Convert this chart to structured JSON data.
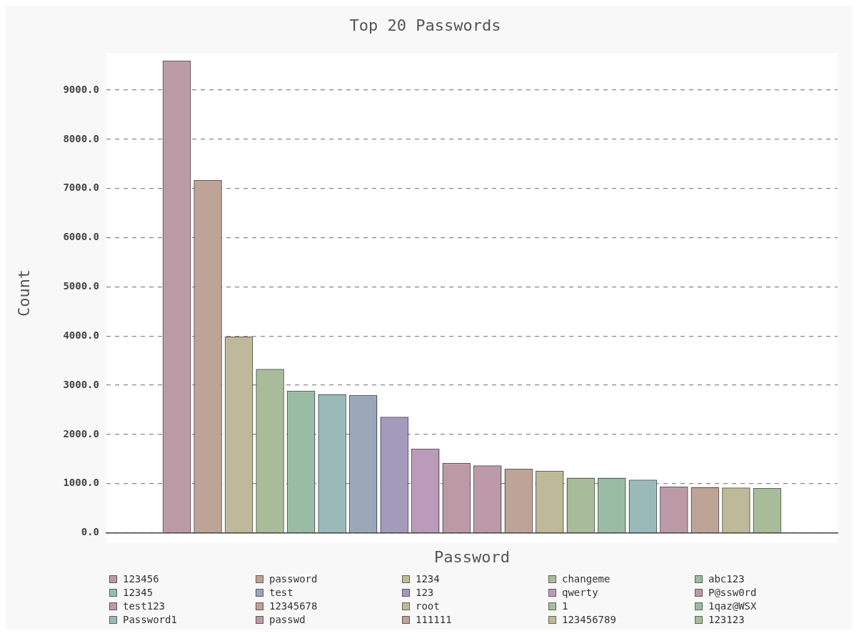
{
  "chart_data": {
    "type": "bar",
    "title": "Top 20 Passwords",
    "xlabel": "Password",
    "ylabel": "Count",
    "categories": [
      null
    ],
    "series": [
      {
        "name": "123456",
        "color": "#bb9aa6",
        "values": [
          9600
        ]
      },
      {
        "name": "password",
        "color": "#bea397",
        "values": [
          7170
        ]
      },
      {
        "name": "1234",
        "color": "#bdb999",
        "values": [
          3990
        ]
      },
      {
        "name": "changeme",
        "color": "#a8bc9a",
        "values": [
          3330
        ]
      },
      {
        "name": "abc123",
        "color": "#9abca4",
        "values": [
          2890
        ]
      },
      {
        "name": "12345",
        "color": "#9abab9",
        "values": [
          2820
        ]
      },
      {
        "name": "test",
        "color": "#9aa8ba",
        "values": [
          2800
        ]
      },
      {
        "name": "123",
        "color": "#a39abc",
        "values": [
          2360
        ]
      },
      {
        "name": "qwerty",
        "color": "#bc9aba",
        "values": [
          1710
        ]
      },
      {
        "name": "P@ssw0rd",
        "color": "#bb9aa6",
        "values": [
          1420
        ]
      },
      {
        "name": "test123",
        "color": "#bc9aa8",
        "values": [
          1370
        ]
      },
      {
        "name": "12345678",
        "color": "#bea397",
        "values": [
          1300
        ]
      },
      {
        "name": "root",
        "color": "#bdb999",
        "values": [
          1260
        ]
      },
      {
        "name": "1",
        "color": "#a8bc9a",
        "values": [
          1120
        ]
      },
      {
        "name": "1qaz@WSX",
        "color": "#9abca4",
        "values": [
          1120
        ]
      },
      {
        "name": "Password1",
        "color": "#9abab9",
        "values": [
          1080
        ]
      },
      {
        "name": "passwd",
        "color": "#bb9aa6",
        "values": [
          940
        ]
      },
      {
        "name": "111111",
        "color": "#bea397",
        "values": [
          930
        ]
      },
      {
        "name": "123456789",
        "color": "#bdb999",
        "values": [
          920
        ]
      },
      {
        "name": "123123",
        "color": "#a8bc9a",
        "values": [
          910
        ]
      }
    ],
    "ylim": [
      0,
      9750
    ],
    "yticks": [
      {
        "value": 0,
        "label": "0.0"
      },
      {
        "value": 1000,
        "label": "1000.0"
      },
      {
        "value": 2000,
        "label": "2000.0"
      },
      {
        "value": 3000,
        "label": "3000.0"
      },
      {
        "value": 4000,
        "label": "4000.0"
      },
      {
        "value": 5000,
        "label": "5000.0"
      },
      {
        "value": 6000,
        "label": "6000.0"
      },
      {
        "value": 7000,
        "label": "7000.0"
      },
      {
        "value": 8000,
        "label": "8000.0"
      },
      {
        "value": 9000,
        "label": "9000.0"
      }
    ],
    "grid": "y",
    "legend": "bottom",
    "tick_labels": "y"
  }
}
